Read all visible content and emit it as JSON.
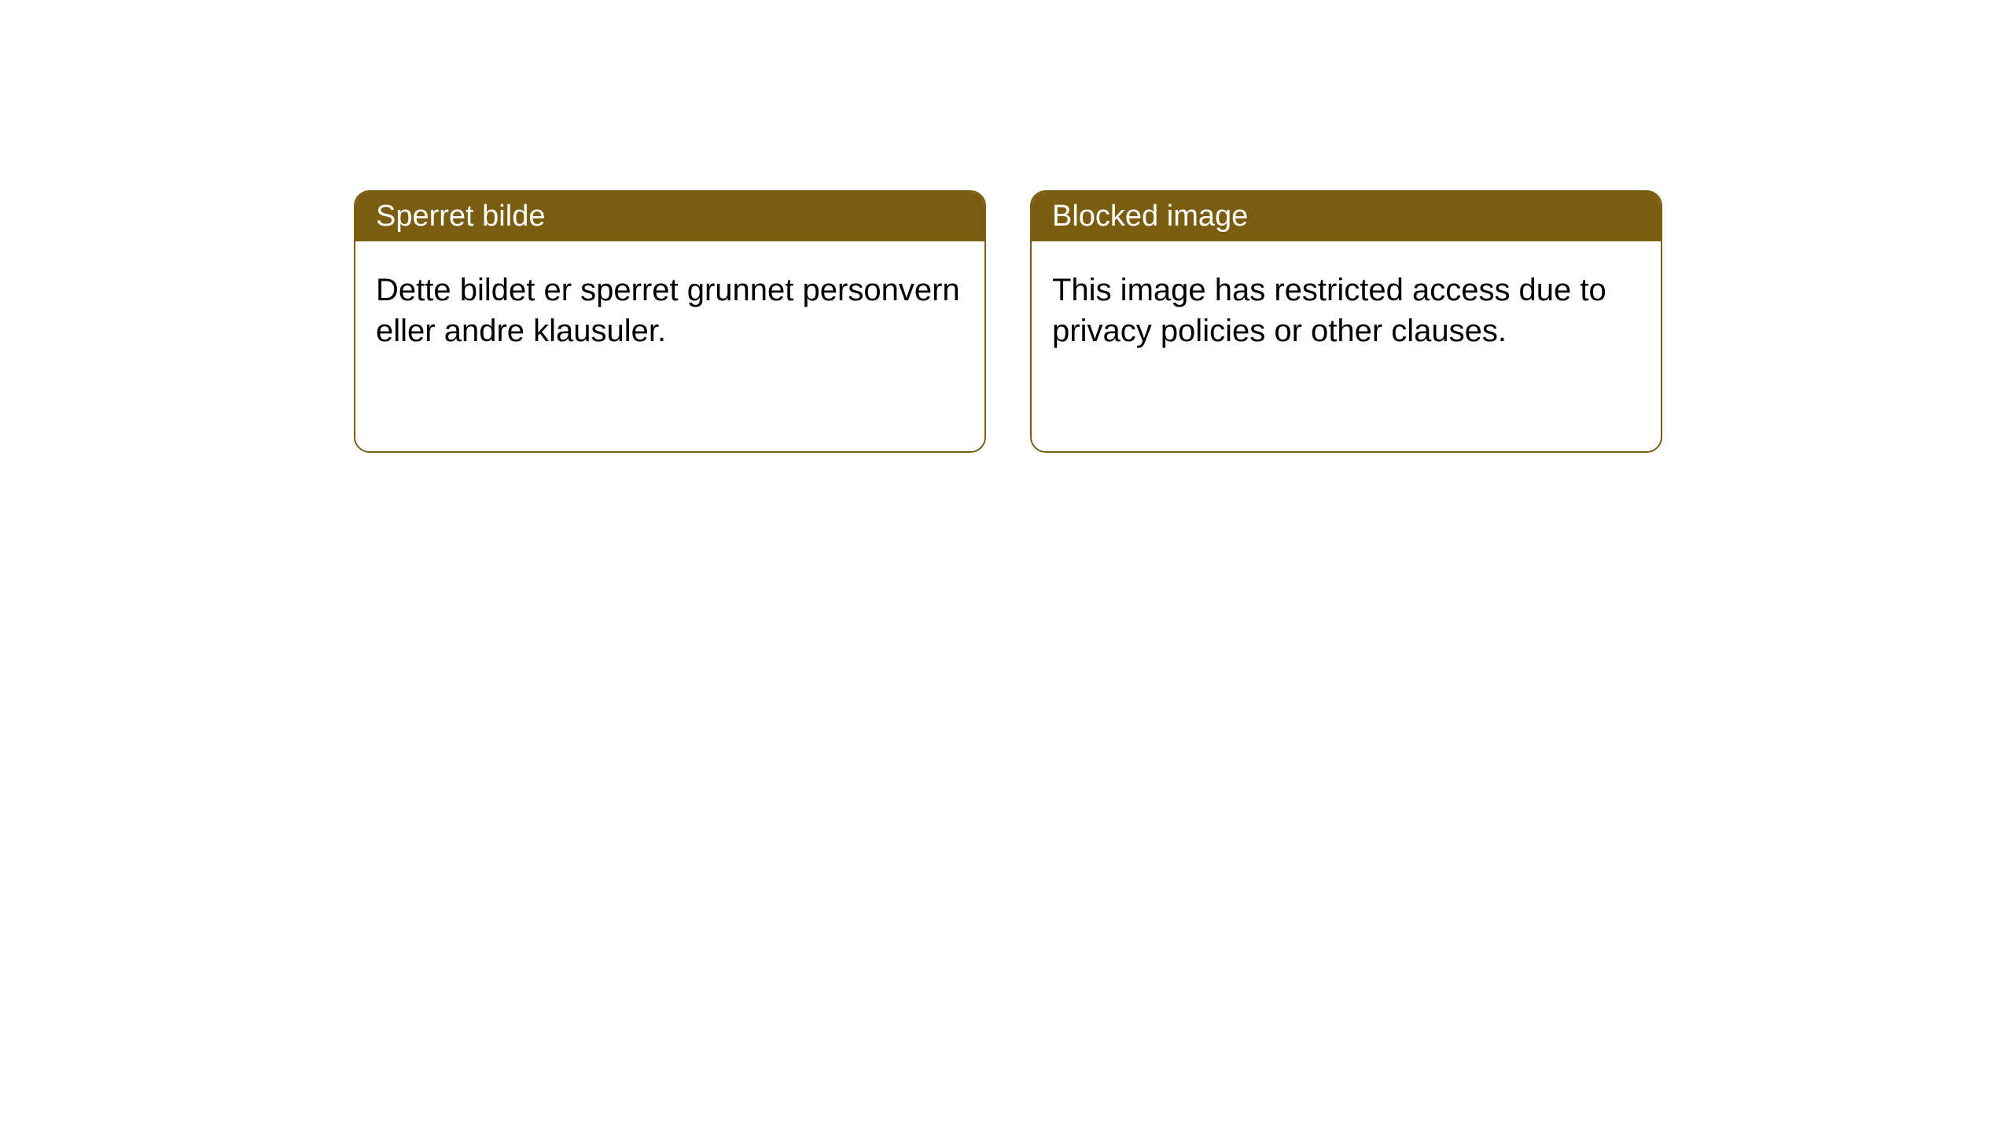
{
  "theme": {
    "header_bg": "#7a5d10",
    "header_text": "#ffffff",
    "border_color": "#7a5d10",
    "body_bg": "#ffffff",
    "body_text": "#000000",
    "border_radius": 20,
    "header_fontsize": 38,
    "body_fontsize": 40
  },
  "cards": [
    {
      "title": "Sperret bilde",
      "body": "Dette bildet er sperret grunnet personvern eller andre klausuler."
    },
    {
      "title": "Blocked image",
      "body": "This image has restricted access due to privacy policies or other clauses."
    }
  ]
}
